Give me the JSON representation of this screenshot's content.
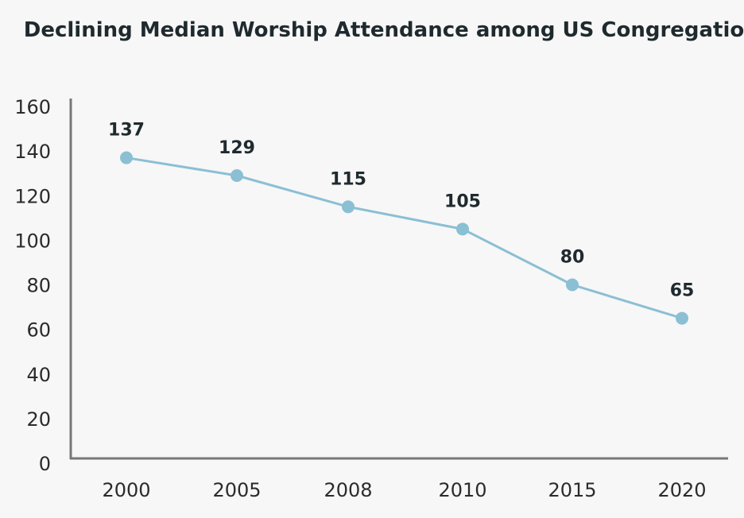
{
  "chart_data": {
    "type": "line",
    "title": "Declining Median Worship Attendance among US Congregations",
    "xlabel": "",
    "ylabel": "",
    "categories": [
      "2000",
      "2005",
      "2008",
      "2010",
      "2015",
      "2020"
    ],
    "series": [
      {
        "values": [
          137,
          129,
          115,
          105,
          80,
          65
        ],
        "color": "#8bbfd4"
      }
    ],
    "data_labels": [
      "137",
      "129",
      "115",
      "105",
      "80",
      "65"
    ],
    "y_ticks": [
      "0",
      "20",
      "40",
      "60",
      "80",
      "100",
      "120",
      "140",
      "160"
    ],
    "ylim": [
      0,
      160
    ],
    "grid": false,
    "legend": "none",
    "axis_color": "#777777"
  }
}
